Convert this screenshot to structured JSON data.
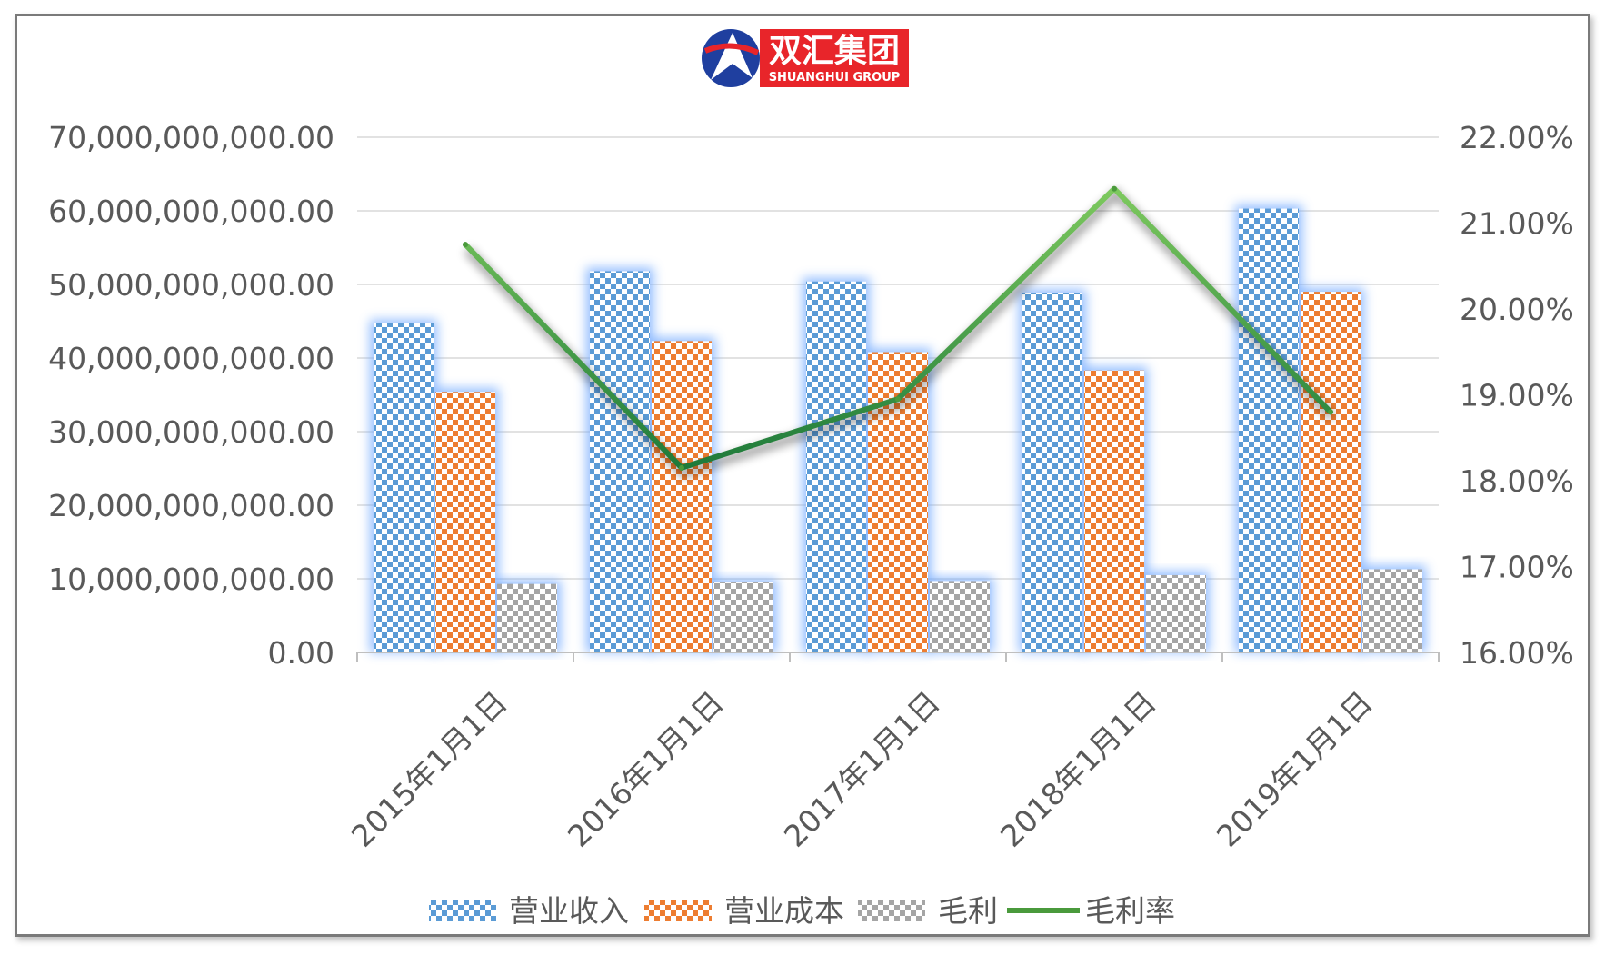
{
  "logo": {
    "name_cn": "双汇集团",
    "name_en": "SHUANGHUI GROUP"
  },
  "colors": {
    "revenue": "#5b9bd5",
    "cost": "#ed7d31",
    "gross_profit": "#a5a5a5",
    "margin_line": "#4a9a3c",
    "grid": "#d9d9d9",
    "logo_red": "#e8252a",
    "logo_blue": "#1f3f9f"
  },
  "chart_data": {
    "type": "bar",
    "categories": [
      "2015年1月1日",
      "2016年1月1日",
      "2017年1月1日",
      "2018年1月1日",
      "2019年1月1日"
    ],
    "series": [
      {
        "name": "营业收入",
        "kind": "bar",
        "axis": "left",
        "values": [
          44700000000,
          51800000000,
          50400000000,
          48800000000,
          60300000000
        ]
      },
      {
        "name": "营业成本",
        "kind": "bar",
        "axis": "left",
        "values": [
          35400000000,
          42300000000,
          40800000000,
          38300000000,
          49000000000
        ]
      },
      {
        "name": "毛利",
        "kind": "bar",
        "axis": "left",
        "values": [
          9300000000,
          9500000000,
          9700000000,
          10500000000,
          11300000000
        ]
      },
      {
        "name": "毛利率",
        "kind": "line",
        "axis": "right",
        "values": [
          0.2075,
          0.1815,
          0.1895,
          0.214,
          0.188
        ]
      }
    ],
    "y_left": {
      "min": 0,
      "max": 70000000000,
      "tick_labels": [
        "0.00",
        "10,000,000,000.00",
        "20,000,000,000.00",
        "30,000,000,000.00",
        "40,000,000,000.00",
        "50,000,000,000.00",
        "60,000,000,000.00",
        "70,000,000,000.00"
      ]
    },
    "y_right": {
      "min": 0.16,
      "max": 0.22,
      "tick_labels": [
        "16.00%",
        "17.00%",
        "18.00%",
        "19.00%",
        "20.00%",
        "21.00%",
        "22.00%"
      ]
    },
    "grid": true,
    "legend_position": "bottom"
  }
}
